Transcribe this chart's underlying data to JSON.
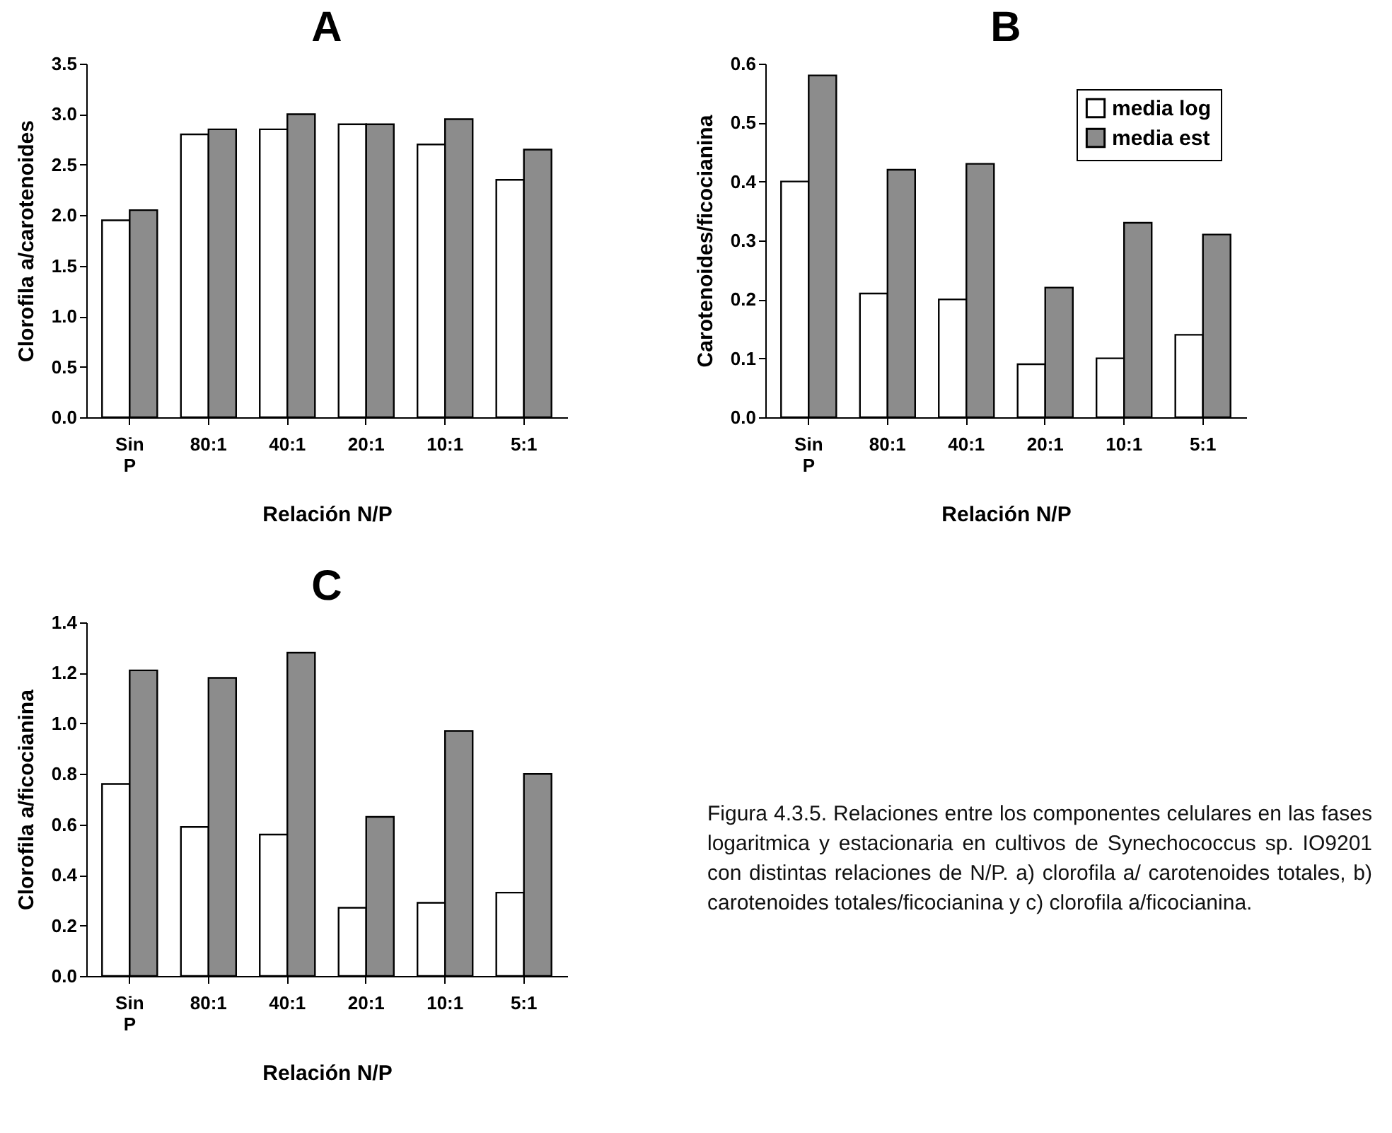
{
  "chart_data": [
    {
      "type": "bar",
      "title": "A",
      "xlabel": "Relación N/P",
      "ylabel": "Clorofila a/carotenoides",
      "categories": [
        "Sin P",
        "80:1",
        "40:1",
        "20:1",
        "10:1",
        "5:1"
      ],
      "series": [
        {
          "color": "#ffffff",
          "values": [
            1.95,
            2.8,
            2.85,
            2.9,
            2.7,
            2.35
          ]
        },
        {
          "color": "#8c8c8c",
          "values": [
            2.05,
            2.85,
            3.0,
            2.9,
            2.95,
            2.65
          ]
        }
      ],
      "ylim": [
        0,
        3.5
      ],
      "yticks": [
        {
          "value": 0,
          "label": "0.0"
        },
        {
          "value": 0.5,
          "label": "0.5"
        },
        {
          "value": 1,
          "label": "1.0"
        },
        {
          "value": 1.5,
          "label": "1.5"
        },
        {
          "value": 2,
          "label": "2.0"
        },
        {
          "value": 2.5,
          "label": "2.5"
        },
        {
          "value": 3,
          "label": "3.0"
        },
        {
          "value": 3.5,
          "label": "3.5"
        }
      ]
    },
    {
      "type": "bar",
      "title": "B",
      "xlabel": "Relación N/P",
      "ylabel": "Carotenoides/ficocianina",
      "categories": [
        "Sin P",
        "80:1",
        "40:1",
        "20:1",
        "10:1",
        "5:1"
      ],
      "series": [
        {
          "name": "media log",
          "color": "#ffffff",
          "values": [
            0.4,
            0.21,
            0.2,
            0.09,
            0.1,
            0.14
          ]
        },
        {
          "name": "media est",
          "color": "#8c8c8c",
          "values": [
            0.58,
            0.42,
            0.43,
            0.22,
            0.33,
            0.31
          ]
        }
      ],
      "ylim": [
        0,
        0.6
      ],
      "yticks": [
        {
          "value": 0,
          "label": "0.0"
        },
        0.1,
        0.2,
        0.3,
        0.4,
        0.5,
        0.6
      ],
      "legend": "top right"
    },
    {
      "type": "bar",
      "title": "C",
      "xlabel": "Relación N/P",
      "ylabel": "Clorofila a/ficocianina",
      "categories": [
        "Sin P",
        "80:1",
        "40:1",
        "20:1",
        "10:1",
        "5:1"
      ],
      "series": [
        {
          "color": "#ffffff",
          "values": [
            0.76,
            0.59,
            0.56,
            0.27,
            0.29,
            0.33
          ]
        },
        {
          "color": "#8c8c8c",
          "values": [
            1.21,
            1.18,
            1.28,
            0.63,
            0.97,
            0.8
          ]
        }
      ],
      "ylim": [
        0,
        1.4
      ],
      "yticks": [
        {
          "value": 0,
          "label": "0.0"
        },
        0.2,
        0.4,
        0.6,
        0.8,
        {
          "value": 1,
          "label": "1.0"
        },
        1.2,
        1.4
      ],
      "annotations": [
        "Figura 4.3.5. Relaciones entre los componentes celulares en las fases logaritmica y estacionaria en cultivos de Synechococcus sp. IO9201 con distintas relaciones de N/P. a) clorofila a/ carotenoides totales, b) carotenoides totales/ficocianina y c) clorofila a/ficocianina."
      ]
    }
  ]
}
